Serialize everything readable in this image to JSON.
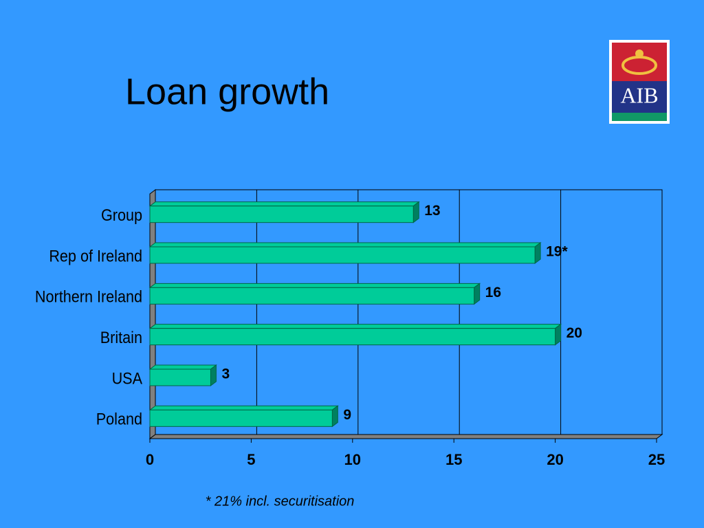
{
  "logo": "AIB",
  "chart_data": {
    "type": "bar",
    "orientation": "horizontal",
    "title": "Loan growth",
    "categories": [
      "Group",
      "Rep of Ireland",
      "Northern Ireland",
      "Britain",
      "USA",
      "Poland"
    ],
    "values": [
      13,
      19,
      16,
      20,
      3,
      9
    ],
    "value_labels": [
      "13",
      "19*",
      "16",
      "20",
      "3",
      "9"
    ],
    "color": "#00cc99",
    "xlim": [
      0,
      25
    ],
    "xticks": [
      0,
      5,
      10,
      15,
      20,
      25
    ],
    "grid": true,
    "annotation": "* 21% incl. securitisation"
  }
}
